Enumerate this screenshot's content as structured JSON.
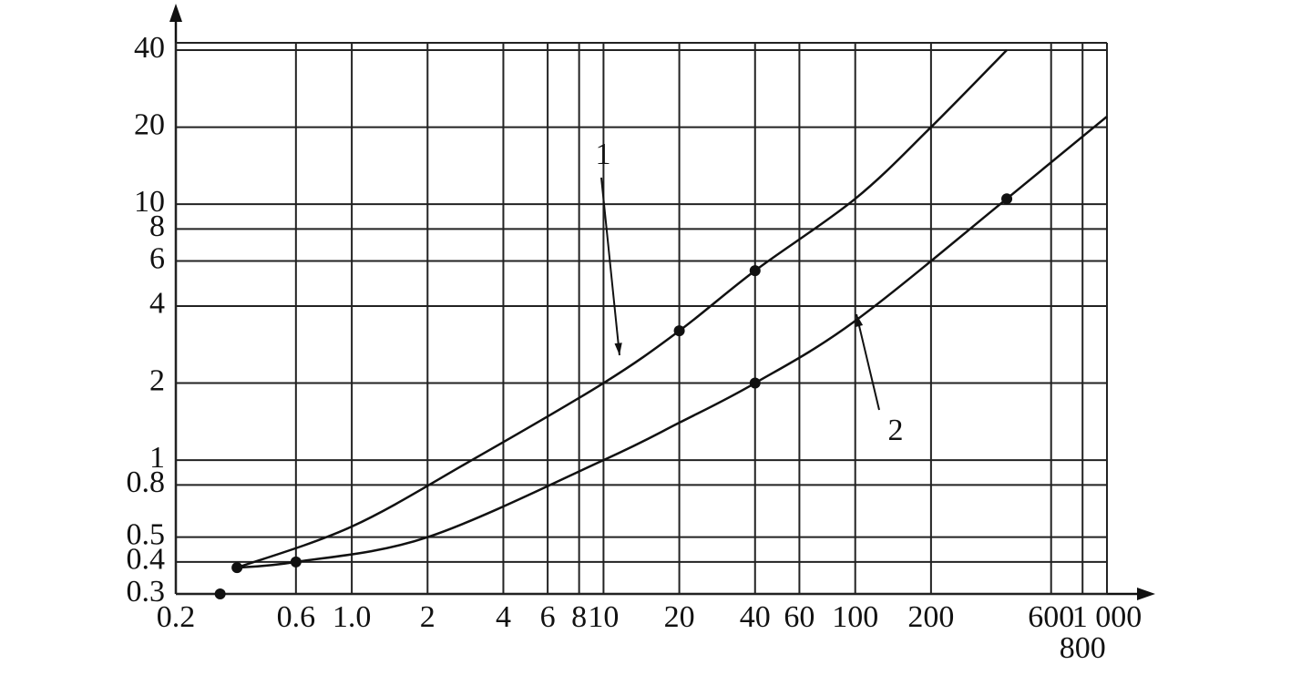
{
  "chart_data": {
    "type": "line",
    "xscale": "log",
    "yscale": "log",
    "grid": true,
    "xlim": [
      0.2,
      1000
    ],
    "ylim": [
      0.3,
      40
    ],
    "xticks": [
      0.2,
      0.6,
      {
        "value": 1,
        "label": "1.0"
      },
      2,
      4,
      6,
      8,
      10,
      20,
      40,
      60,
      100,
      200,
      600,
      800,
      {
        "value": 1000,
        "label": "1 000"
      }
    ],
    "yticks": [
      0.3,
      0.4,
      0.5,
      0.8,
      1,
      2,
      4,
      6,
      8,
      10,
      20,
      40
    ],
    "series": [
      {
        "name": "1",
        "color": "#111111",
        "x": [
          0.35,
          1,
          3,
          10,
          20,
          40,
          100,
          200,
          400
        ],
        "values": [
          0.38,
          0.55,
          1,
          2,
          3.2,
          5.5,
          10.5,
          20,
          40
        ],
        "points": {
          "x": [
            0.3,
            0.35,
            20,
            40
          ],
          "values": [
            0.3,
            0.38,
            3.2,
            5.5
          ]
        }
      },
      {
        "name": "2",
        "color": "#111111",
        "x": [
          0.35,
          0.6,
          2,
          10,
          20,
          40,
          100,
          400,
          1000
        ],
        "values": [
          0.38,
          0.4,
          0.5,
          1,
          1.4,
          2,
          3.5,
          10.5,
          22
        ],
        "points": {
          "x": [
            0.6,
            40,
            400
          ],
          "values": [
            0.4,
            2,
            10.5
          ]
        }
      }
    ]
  }
}
